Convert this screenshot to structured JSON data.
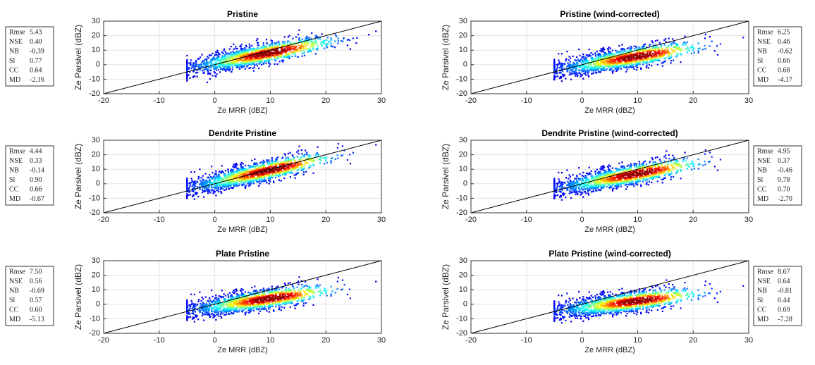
{
  "chart_data": [
    {
      "type": "scatter",
      "title": "Pristine",
      "xlabel": "Ze MRR (dBZ)",
      "ylabel": "Ze Parsivel (dBZ)",
      "xlim": [
        -20,
        30
      ],
      "ylim": [
        -20,
        30
      ],
      "xticks": [
        -20,
        -10,
        0,
        10,
        20,
        30
      ],
      "yticks": [
        -20,
        -10,
        0,
        10,
        20,
        30
      ],
      "grid": true,
      "stats_box": "left",
      "stats": {
        "labels": [
          "Rmse",
          "NSE",
          "NB",
          "Sl",
          "CC",
          "MD"
        ],
        "values": [
          5.43,
          0.4,
          -0.39,
          0.77,
          0.64,
          -2.16
        ],
        "value_labels": [
          "5.43",
          "0.40",
          "-0.39",
          "0.77",
          "0.64",
          "-2.16"
        ]
      }
    },
    {
      "type": "scatter",
      "title": "Pristine (wind-corrected)",
      "xlabel": "Ze MRR (dBZ)",
      "ylabel": "Ze Parsivel (dBZ)",
      "xlim": [
        -20,
        30
      ],
      "ylim": [
        -20,
        30
      ],
      "xticks": [
        -20,
        -10,
        0,
        10,
        20,
        30
      ],
      "yticks": [
        -20,
        -10,
        0,
        10,
        20,
        30
      ],
      "grid": true,
      "stats_box": "right",
      "stats": {
        "labels": [
          "Rmse",
          "NSE",
          "NB",
          "Sl",
          "CC",
          "MD"
        ],
        "values": [
          6.25,
          0.46,
          -0.62,
          0.66,
          0.68,
          -4.17
        ],
        "value_labels": [
          "6.25",
          "0.46",
          "-0.62",
          "0.66",
          "0.68",
          "-4.17"
        ]
      }
    },
    {
      "type": "scatter",
      "title": "Dendrite Pristine",
      "xlabel": "Ze MRR (dBZ)",
      "ylabel": "Ze Parsivel (dBZ)",
      "xlim": [
        -20,
        30
      ],
      "ylim": [
        -20,
        30
      ],
      "xticks": [
        -20,
        -10,
        0,
        10,
        20,
        30
      ],
      "yticks": [
        -20,
        -10,
        0,
        10,
        20,
        30
      ],
      "grid": true,
      "stats_box": "left",
      "stats": {
        "labels": [
          "Rmse",
          "NSE",
          "NB",
          "Sl",
          "CC",
          "MD"
        ],
        "values": [
          4.44,
          0.33,
          -0.14,
          0.9,
          0.66,
          -0.67
        ],
        "value_labels": [
          "4.44",
          "0.33",
          "-0.14",
          "0.90",
          "0.66",
          "-0.67"
        ]
      }
    },
    {
      "type": "scatter",
      "title": "Dendrite Pristine (wind-corrected)",
      "xlabel": "Ze MRR (dBZ)",
      "ylabel": "Ze Parsivel (dBZ)",
      "xlim": [
        -20,
        30
      ],
      "ylim": [
        -20,
        30
      ],
      "xticks": [
        -20,
        -10,
        0,
        10,
        20,
        30
      ],
      "yticks": [
        -20,
        -10,
        0,
        10,
        20,
        30
      ],
      "grid": true,
      "stats_box": "right",
      "stats": {
        "labels": [
          "Rmse",
          "NSE",
          "NB",
          "Sl",
          "CC",
          "MD"
        ],
        "values": [
          4.95,
          0.37,
          -0.46,
          0.78,
          0.7,
          -2.7
        ],
        "value_labels": [
          "4.95",
          "0.37",
          "-0.46",
          "0.78",
          "0.70",
          "-2.70"
        ]
      }
    },
    {
      "type": "scatter",
      "title": "Plate Pristine",
      "xlabel": "Ze MRR (dBZ)",
      "ylabel": "Ze Parsivel (dBZ)",
      "xlim": [
        -20,
        30
      ],
      "ylim": [
        -20,
        30
      ],
      "xticks": [
        -20,
        -10,
        0,
        10,
        20,
        30
      ],
      "yticks": [
        -20,
        -10,
        0,
        10,
        20,
        30
      ],
      "grid": true,
      "stats_box": "left",
      "stats": {
        "labels": [
          "Rmse",
          "NSE",
          "NB",
          "Sl",
          "CC",
          "MD"
        ],
        "values": [
          7.5,
          0.56,
          -0.69,
          0.57,
          0.6,
          -5.13
        ],
        "value_labels": [
          "7.50",
          "0.56",
          "-0.69",
          "0.57",
          "0.60",
          "-5.13"
        ]
      }
    },
    {
      "type": "scatter",
      "title": "Plate Pristine (wind-corrected)",
      "xlabel": "Ze MRR (dBZ)",
      "ylabel": "Ze Parsivel (dBZ)",
      "xlim": [
        -20,
        30
      ],
      "ylim": [
        -20,
        30
      ],
      "xticks": [
        -20,
        -10,
        0,
        10,
        20,
        30
      ],
      "yticks": [
        -20,
        -10,
        0,
        10,
        20,
        30
      ],
      "grid": true,
      "stats_box": "right",
      "stats": {
        "labels": [
          "Rmse",
          "NSE",
          "NB",
          "Sl",
          "CC",
          "MD"
        ],
        "values": [
          8.67,
          0.64,
          -0.81,
          0.44,
          0.69,
          -7.28
        ],
        "value_labels": [
          "8.67",
          "0.64",
          "-0.81",
          "0.44",
          "0.69",
          "-7.28"
        ]
      }
    }
  ]
}
